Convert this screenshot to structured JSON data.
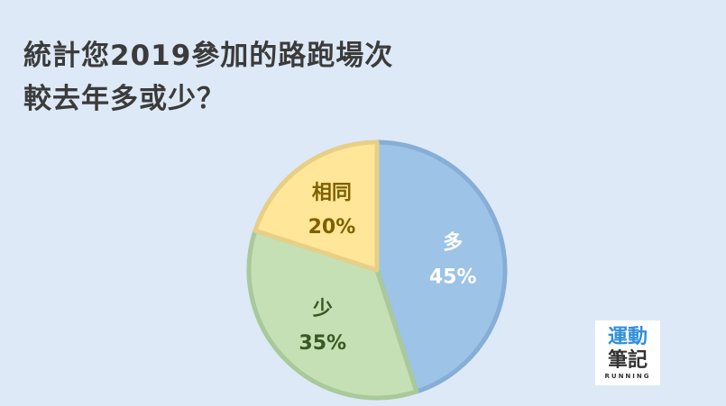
{
  "title_line1": "統計您2019參加的路跑場次",
  "title_line2": "較去年多或少？",
  "chart_data": {
    "type": "pie",
    "title": "統計您2019參加的路跑場次較去年多或少？",
    "start": "top",
    "direction": "clockwise",
    "slices": [
      {
        "label": "多",
        "value": 45,
        "display": "45%",
        "color": "#9dc3e6",
        "border": "#86aed6",
        "text_color": "#ffffff"
      },
      {
        "label": "少",
        "value": 35,
        "display": "35%",
        "color": "#c5e0b4",
        "border": "#a9c99a",
        "text_color": "#385723"
      },
      {
        "label": "相同",
        "value": 20,
        "display": "20%",
        "color": "#ffe699",
        "border": "#e8cf86",
        "text_color": "#7f6000"
      }
    ]
  },
  "logo": {
    "line1": "運動",
    "line2": "筆記",
    "line3": "RUNNING"
  }
}
